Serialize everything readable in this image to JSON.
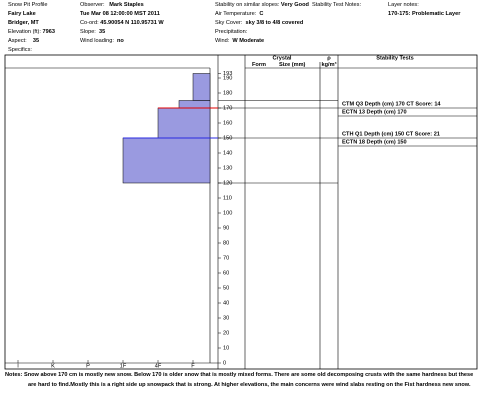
{
  "header": {
    "title": "Snow Pit Profile",
    "location": "Fairy Lake",
    "region": "Bridger, MT",
    "elevation_label": "Elevation (ft):",
    "elevation": 7963,
    "aspect_label": "Aspect:",
    "aspect": 35,
    "specifics_label": "Specifics:",
    "observer_label": "Observer:",
    "observer": "Mark Staples",
    "date": "Tue Mar 08 12:00:00 MST 2011",
    "coord_label": "Co-ord:",
    "coord": "45.90054 N 110.95731 W",
    "slope_label": "Slope:",
    "slope": 35,
    "wind_loading_label": "Wind loading:",
    "wind_loading": "no",
    "stability_label": "Stability on similar slopes:",
    "stability": "Very Good",
    "air_temp_label": "Air Temperature:",
    "air_temp": "C",
    "sky_label": "Sky Cover:",
    "sky": "sky 3/8 to 4/8 covered",
    "precip_label": "Precipitation:",
    "wind_label": "Wind:",
    "wind": "W Moderate",
    "test_notes_label": "Stability Test Notes:",
    "layer_notes_label": "Layer notes:",
    "layer_notes": "170-175: Problematic Layer"
  },
  "profile": {
    "depth_lim": [
      0,
      193
    ],
    "depth_ticks": [
      0,
      10,
      20,
      30,
      40,
      50,
      60,
      70,
      80,
      90,
      100,
      110,
      120,
      130,
      140,
      150,
      160,
      170,
      180,
      190,
      193
    ],
    "hardness_ticks": [
      {
        "value": 6,
        "label": "I"
      },
      {
        "value": 5,
        "label": "K"
      },
      {
        "value": 4,
        "label": "P"
      },
      {
        "value": 3,
        "label": "1F"
      },
      {
        "value": 2,
        "label": "4F"
      },
      {
        "value": 1,
        "label": "F"
      }
    ],
    "layer_color": "#9a9ae0",
    "layers": [
      {
        "top": 193,
        "bottom": 175,
        "hardness": 1
      },
      {
        "top": 175,
        "bottom": 170,
        "hardness": 1.4
      },
      {
        "top": 170,
        "bottom": 150,
        "hardness": 2
      },
      {
        "top": 150,
        "bottom": 120,
        "hardness": 3
      }
    ],
    "markers": [
      {
        "depth": 170,
        "color": "#e00000"
      },
      {
        "depth": 150,
        "color": "#2a2ae0"
      }
    ]
  },
  "table": {
    "crystal_header": "Crystal",
    "form_header": "Form",
    "size_header": "Size (mm)",
    "rho_header": "ρ",
    "density_unit": "kg/m³",
    "stability_header": "Stability Tests",
    "tests": [
      {
        "text": "CTM Q3 Depth (cm) 170 CT Score: 14",
        "depth": 170
      },
      {
        "text": "ECTN 13  Depth (cm) 170",
        "depth": 170
      },
      {
        "text": "CTH Q1 Depth (cm) 150 CT Score: 21",
        "depth": 150
      },
      {
        "text": "ECTN 18  Depth (cm) 150",
        "depth": 150
      }
    ]
  },
  "notes_label": "Notes:",
  "notes": "Snow above 170 cm is mostly new snow. Below 170 is older snow that is mostly mixed forms.  There are some old decomposing crusts with the same hardness but these are hard to find.Mostly this is a right side up snowpack that is strong.  At higher elevations, the main concerns were wind slabs resting on the Fist hardness new snow."
}
